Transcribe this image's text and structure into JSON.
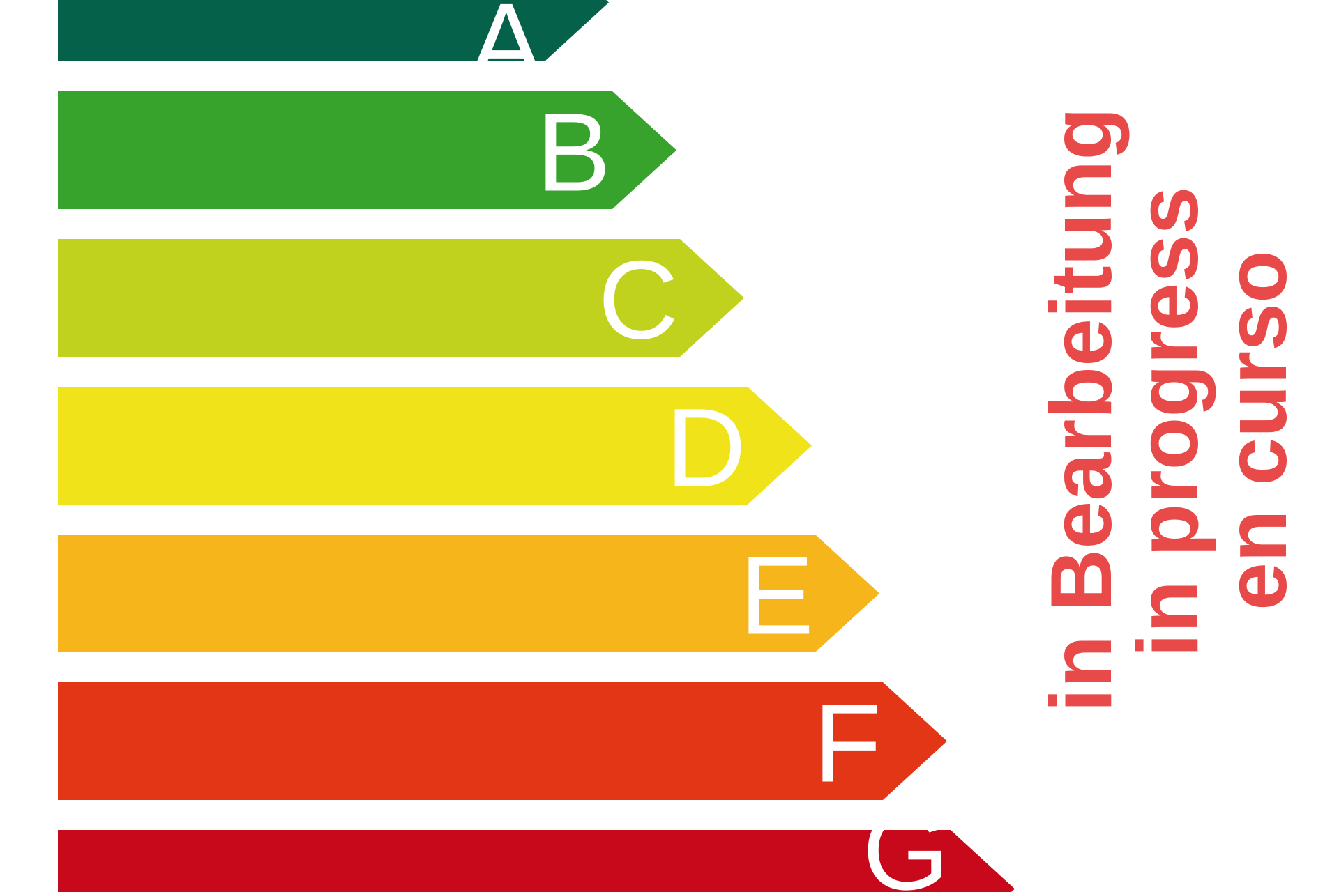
{
  "energy_classes": [
    {
      "label": "A",
      "color": "#05614a"
    },
    {
      "label": "B",
      "color": "#37a22c"
    },
    {
      "label": "C",
      "color": "#c0d21d"
    },
    {
      "label": "D",
      "color": "#f0e31a"
    },
    {
      "label": "E",
      "color": "#f6b51a"
    },
    {
      "label": "F",
      "color": "#e23617"
    },
    {
      "label": "G",
      "color": "#c8091c"
    }
  ],
  "status": {
    "color": "#e84a4a",
    "lines": [
      "in Bearbeitung",
      "in progress",
      "en curso"
    ]
  }
}
